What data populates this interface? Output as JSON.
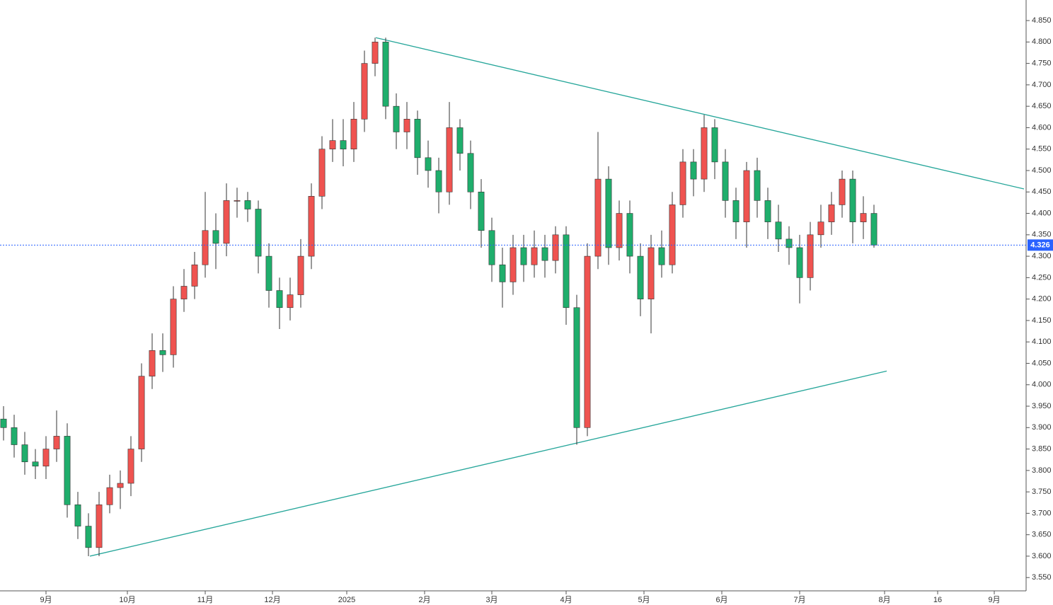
{
  "chart_data": {
    "type": "candlestick",
    "x": [
      -12,
      -9,
      -6,
      -3,
      0,
      3,
      6,
      9,
      12,
      15,
      18,
      21,
      24,
      27,
      30,
      33,
      36,
      39,
      42,
      45,
      48,
      51,
      54,
      57,
      60,
      63,
      66,
      69,
      72,
      75,
      78,
      81,
      84,
      87,
      90,
      93,
      96,
      99,
      102,
      105,
      108,
      111,
      114,
      117,
      120,
      123,
      126,
      129,
      132,
      135,
      138,
      141,
      144,
      147,
      150,
      153,
      156,
      159,
      162,
      165,
      168,
      171,
      174,
      177,
      180,
      183,
      186,
      189,
      192,
      195,
      198,
      201,
      204,
      207,
      210,
      213,
      216,
      219,
      222,
      225,
      228,
      231,
      234
    ],
    "open": [
      3.92,
      3.9,
      3.86,
      3.82,
      3.81,
      3.85,
      3.88,
      3.72,
      3.67,
      3.62,
      3.72,
      3.76,
      3.77,
      3.85,
      4.02,
      4.08,
      4.07,
      4.2,
      4.23,
      4.28,
      4.36,
      4.33,
      4.43,
      4.43,
      4.41,
      4.3,
      4.22,
      4.18,
      4.21,
      4.3,
      4.44,
      4.55,
      4.57,
      4.55,
      4.62,
      4.75,
      4.8,
      4.65,
      4.59,
      4.62,
      4.53,
      4.5,
      4.45,
      4.6,
      4.54,
      4.45,
      4.36,
      4.28,
      4.24,
      4.32,
      4.28,
      4.32,
      4.29,
      4.35,
      4.18,
      3.9,
      4.3,
      4.48,
      4.32,
      4.4,
      4.3,
      4.2,
      4.32,
      4.28,
      4.42,
      4.52,
      4.48,
      4.6,
      4.52,
      4.43,
      4.38,
      4.5,
      4.43,
      4.38,
      4.34,
      4.32,
      4.25,
      4.35,
      4.38,
      4.42,
      4.48,
      4.38,
      4.4
    ],
    "high": [
      3.95,
      3.93,
      3.89,
      3.85,
      3.88,
      3.94,
      3.91,
      3.75,
      3.7,
      3.75,
      3.79,
      3.8,
      3.88,
      4.05,
      4.12,
      4.12,
      4.23,
      4.27,
      4.31,
      4.45,
      4.4,
      4.47,
      4.46,
      4.45,
      4.43,
      4.33,
      4.25,
      4.25,
      4.34,
      4.47,
      4.58,
      4.62,
      4.62,
      4.66,
      4.78,
      4.81,
      4.81,
      4.68,
      4.66,
      4.64,
      4.57,
      4.53,
      4.66,
      4.62,
      4.57,
      4.48,
      4.39,
      4.32,
      4.35,
      4.35,
      4.36,
      4.35,
      4.37,
      4.37,
      4.21,
      4.33,
      4.59,
      4.51,
      4.43,
      4.43,
      4.33,
      4.35,
      4.36,
      4.45,
      4.55,
      4.55,
      4.63,
      4.62,
      4.55,
      4.46,
      4.52,
      4.53,
      4.46,
      4.42,
      4.37,
      4.35,
      4.38,
      4.42,
      4.45,
      4.5,
      4.5,
      4.44,
      4.42
    ],
    "low": [
      3.87,
      3.83,
      3.79,
      3.78,
      3.78,
      3.82,
      3.69,
      3.64,
      3.6,
      3.6,
      3.7,
      3.71,
      3.74,
      3.82,
      3.99,
      4.03,
      4.04,
      4.17,
      4.2,
      4.25,
      4.27,
      4.3,
      4.39,
      4.38,
      4.26,
      4.18,
      4.13,
      4.15,
      4.18,
      4.27,
      4.41,
      4.52,
      4.51,
      4.52,
      4.59,
      4.72,
      4.62,
      4.55,
      4.55,
      4.49,
      4.46,
      4.4,
      4.42,
      4.5,
      4.41,
      4.32,
      4.24,
      4.18,
      4.21,
      4.24,
      4.25,
      4.25,
      4.26,
      4.14,
      3.86,
      3.88,
      4.27,
      4.28,
      4.29,
      4.26,
      4.16,
      4.12,
      4.25,
      4.26,
      4.39,
      4.44,
      4.45,
      4.48,
      4.39,
      4.34,
      4.32,
      4.39,
      4.34,
      4.31,
      4.28,
      4.19,
      4.22,
      4.32,
      4.35,
      4.39,
      4.33,
      4.34,
      4.32
    ],
    "close": [
      3.9,
      3.86,
      3.82,
      3.81,
      3.85,
      3.88,
      3.72,
      3.67,
      3.62,
      3.72,
      3.76,
      3.77,
      3.85,
      4.02,
      4.08,
      4.07,
      4.2,
      4.23,
      4.28,
      4.36,
      4.33,
      4.43,
      4.43,
      4.41,
      4.3,
      4.22,
      4.18,
      4.21,
      4.3,
      4.44,
      4.55,
      4.57,
      4.55,
      4.62,
      4.75,
      4.8,
      4.65,
      4.59,
      4.62,
      4.53,
      4.5,
      4.45,
      4.6,
      4.54,
      4.45,
      4.36,
      4.28,
      4.24,
      4.32,
      4.28,
      4.32,
      4.29,
      4.35,
      4.18,
      3.9,
      4.3,
      4.48,
      4.32,
      4.4,
      4.3,
      4.2,
      4.32,
      4.28,
      4.42,
      4.52,
      4.48,
      4.6,
      4.52,
      4.43,
      4.38,
      4.5,
      4.43,
      4.38,
      4.34,
      4.32,
      4.25,
      4.35,
      4.38,
      4.42,
      4.48,
      4.38,
      4.4,
      4.326
    ],
    "up_color": "#ef5350",
    "down_color": "#1fae6c",
    "xlim": [
      -13,
      277
    ],
    "ylim": [
      3.519,
      4.898
    ],
    "xticks": [
      {
        "value": 0,
        "label": "9月"
      },
      {
        "value": 23,
        "label": "10月"
      },
      {
        "value": 45,
        "label": "11月"
      },
      {
        "value": 64,
        "label": "12月"
      },
      {
        "value": 85,
        "label": "2025"
      },
      {
        "value": 107,
        "label": "2月"
      },
      {
        "value": 126,
        "label": "3月"
      },
      {
        "value": 147,
        "label": "4月"
      },
      {
        "value": 169,
        "label": "5月"
      },
      {
        "value": 191,
        "label": "6月"
      },
      {
        "value": 213,
        "label": "7月"
      },
      {
        "value": 237,
        "label": "8月"
      },
      {
        "value": 252,
        "label": "16"
      },
      {
        "value": 268,
        "label": "9月"
      }
    ],
    "yticks": [
      {
        "value": 3.55,
        "label": "3.550"
      },
      {
        "value": 3.6,
        "label": "3.600"
      },
      {
        "value": 3.65,
        "label": "3.650"
      },
      {
        "value": 3.7,
        "label": "3.700"
      },
      {
        "value": 3.75,
        "label": "3.750"
      },
      {
        "value": 3.8,
        "label": "3.800"
      },
      {
        "value": 3.85,
        "label": "3.850"
      },
      {
        "value": 3.9,
        "label": "3.900"
      },
      {
        "value": 3.95,
        "label": "3.950"
      },
      {
        "value": 4.0,
        "label": "4.000"
      },
      {
        "value": 4.05,
        "label": "4.050"
      },
      {
        "value": 4.1,
        "label": "4.100"
      },
      {
        "value": 4.15,
        "label": "4.150"
      },
      {
        "value": 4.2,
        "label": "4.200"
      },
      {
        "value": 4.25,
        "label": "4.250"
      },
      {
        "value": 4.3,
        "label": "4.300"
      },
      {
        "value": 4.35,
        "label": "4.350"
      },
      {
        "value": 4.4,
        "label": "4.400"
      },
      {
        "value": 4.45,
        "label": "4.450"
      },
      {
        "value": 4.5,
        "label": "4.500"
      },
      {
        "value": 4.55,
        "label": "4.550"
      },
      {
        "value": 4.6,
        "label": "4.600"
      },
      {
        "value": 4.65,
        "label": "4.650"
      },
      {
        "value": 4.7,
        "label": "4.700"
      },
      {
        "value": 4.75,
        "label": "4.750"
      },
      {
        "value": 4.8,
        "label": "4.800"
      },
      {
        "value": 4.85,
        "label": "4.850"
      }
    ],
    "trend_lines": [
      {
        "x": [
          93.2,
          276.4
        ],
        "y": [
          4.81,
          4.457
        ],
        "color": "#26a69a"
      },
      {
        "x": [
          12.4,
          237.6
        ],
        "y": [
          3.6,
          4.032
        ],
        "color": "#26a69a"
      }
    ],
    "last_price": 4.326,
    "last_price_color": "#2962ff"
  }
}
